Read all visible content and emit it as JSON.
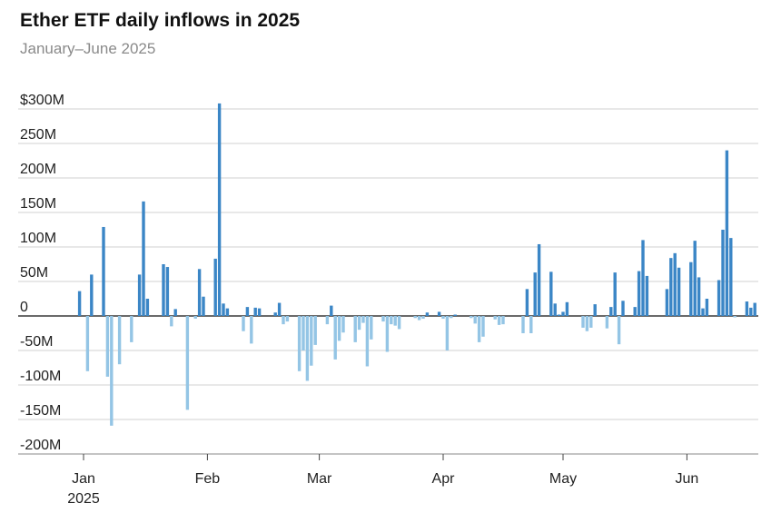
{
  "chart_data": {
    "type": "bar",
    "title": "Ether ETF daily inflows in 2025",
    "subtitle": "January–June 2025",
    "year_label": "2025",
    "categories": [
      null,
      "Jan",
      null,
      null,
      null,
      null,
      null,
      null,
      null,
      null,
      null,
      null,
      null,
      null,
      null,
      null,
      null,
      null,
      null,
      null,
      null,
      null,
      null,
      null,
      null,
      null,
      null,
      null,
      null,
      null,
      null,
      null,
      "Feb",
      null,
      null,
      null,
      null,
      null,
      null,
      null,
      null,
      null,
      null,
      null,
      null,
      null,
      null,
      null,
      null,
      null,
      null,
      null,
      null,
      null,
      null,
      null,
      null,
      null,
      null,
      null,
      "Mar",
      null,
      null,
      null,
      null,
      null,
      null,
      null,
      null,
      null,
      null,
      null,
      null,
      null,
      null,
      null,
      null,
      null,
      null,
      null,
      null,
      null,
      null,
      null,
      null,
      null,
      null,
      null,
      null,
      null,
      null,
      "Apr",
      null,
      null,
      null,
      null,
      null,
      null,
      null,
      null,
      null,
      null,
      null,
      null,
      null,
      null,
      null,
      null,
      null,
      null,
      null,
      null,
      null,
      null,
      null,
      null,
      null,
      null,
      null,
      null,
      null,
      "May",
      null,
      null,
      null,
      null,
      null,
      null,
      null,
      null,
      null,
      null,
      null,
      null,
      null,
      null,
      null,
      null,
      null,
      null,
      null,
      null,
      null,
      null,
      null,
      null,
      null,
      null,
      null,
      null,
      null,
      null,
      "Jun",
      null,
      null,
      null,
      null,
      null,
      null,
      null,
      null,
      null,
      null,
      null,
      null,
      null,
      null,
      null,
      null,
      null
    ],
    "values": [
      36,
      null,
      -80,
      60,
      null,
      null,
      129,
      -88,
      -159,
      null,
      -70,
      null,
      null,
      -38,
      0,
      60,
      166,
      25,
      null,
      null,
      null,
      75,
      71,
      -15,
      10,
      null,
      null,
      -136,
      0,
      -4,
      68,
      28,
      null,
      null,
      83,
      308,
      18,
      11,
      0,
      null,
      null,
      -22,
      13,
      -40,
      12,
      11,
      null,
      null,
      null,
      5,
      19,
      -12,
      -8,
      null,
      null,
      -80,
      -50,
      -94,
      -72,
      -42,
      null,
      null,
      -12,
      15,
      -63,
      -36,
      -24,
      null,
      null,
      -38,
      -20,
      -10,
      -73,
      -34,
      null,
      null,
      -8,
      -52,
      -12,
      -14,
      -19,
      null,
      null,
      0,
      -3,
      -6,
      -4,
      5,
      null,
      null,
      6,
      -4,
      -50,
      -3,
      2,
      null,
      null,
      0,
      -3,
      -11,
      -38,
      -30,
      null,
      null,
      -5,
      -13,
      -12,
      0,
      null,
      null,
      null,
      -25,
      39,
      -25,
      63,
      104,
      null,
      null,
      64,
      18,
      2,
      6,
      20,
      null,
      null,
      0,
      -17,
      -22,
      -17,
      17,
      null,
      null,
      -18,
      13,
      63,
      -41,
      22,
      null,
      null,
      13,
      65,
      110,
      58,
      0,
      null,
      null,
      null,
      39,
      84,
      91,
      70,
      null,
      null,
      78,
      109,
      56,
      11,
      25,
      null,
      null,
      52,
      125,
      240,
      113,
      -2,
      null,
      null,
      21,
      12,
      19
    ],
    "positive_color": "#3b86c6",
    "negative_color": "#94c5e5",
    "ylim": [
      -200,
      300
    ],
    "yticks": [
      {
        "value": -200,
        "label": "-200M"
      },
      {
        "value": -150,
        "label": "-150M"
      },
      {
        "value": -100,
        "label": "-100M"
      },
      {
        "value": -50,
        "label": "-50M"
      },
      0,
      {
        "value": 50,
        "label": "50M"
      },
      {
        "value": 100,
        "label": "100M"
      },
      {
        "value": 150,
        "label": "150M"
      },
      {
        "value": 200,
        "label": "200M"
      },
      {
        "value": 250,
        "label": "250M"
      },
      {
        "value": 300,
        "label": "$300M"
      }
    ],
    "grid": true
  }
}
